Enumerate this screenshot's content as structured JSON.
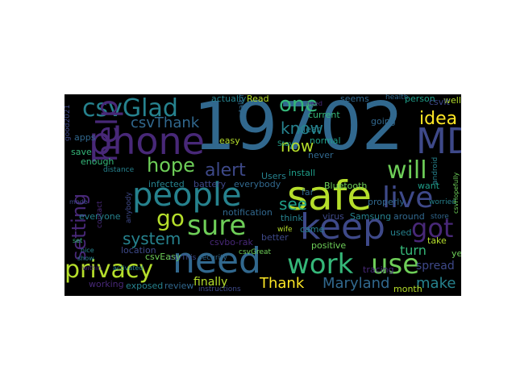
{
  "wordcloud": {
    "words": [
      {
        "text": "19702",
        "color": "#31688e"
      },
      {
        "text": "MD",
        "color": "#3e4989"
      },
      {
        "text": "phone",
        "color": "#482878"
      },
      {
        "text": "safe",
        "color": "#b5de2b"
      },
      {
        "text": "keep",
        "color": "#3e4989"
      },
      {
        "text": "people",
        "color": "#26828e"
      },
      {
        "text": "need",
        "color": "#31688e"
      },
      {
        "text": "work",
        "color": "#35b779"
      },
      {
        "text": "use",
        "color": "#6ece58"
      },
      {
        "text": "sure",
        "color": "#6ece58"
      },
      {
        "text": "live",
        "color": "#3e4989"
      },
      {
        "text": "csvGlad",
        "color": "#26828e"
      },
      {
        "text": "help",
        "color": "#482878"
      },
      {
        "text": "privacy",
        "color": "#b5de2b"
      },
      {
        "text": "one",
        "color": "#35b779"
      },
      {
        "text": "got",
        "color": "#482878"
      },
      {
        "text": "will",
        "color": "#6ece58"
      },
      {
        "text": "alert",
        "color": "#3e4989"
      },
      {
        "text": "hope",
        "color": "#6ece58"
      },
      {
        "text": "go",
        "color": "#b5de2b"
      },
      {
        "text": "csvThank",
        "color": "#31688e"
      },
      {
        "text": "know",
        "color": "#26828e"
      },
      {
        "text": "now",
        "color": "#b5de2b"
      },
      {
        "text": "idea",
        "color": "#fde725"
      },
      {
        "text": "see",
        "color": "#1f9e89"
      },
      {
        "text": "setting",
        "color": "#482878"
      },
      {
        "text": "system",
        "color": "#26828e"
      },
      {
        "text": "Thank",
        "color": "#fde725"
      },
      {
        "text": "Maryland",
        "color": "#31688e"
      },
      {
        "text": "make",
        "color": "#26828e"
      },
      {
        "text": "turn",
        "color": "#35b779"
      },
      {
        "text": "finally",
        "color": "#b5de2b"
      },
      {
        "text": "spread",
        "color": "#3e4989"
      },
      {
        "text": "Bluetooth",
        "color": "#6ece58"
      },
      {
        "text": "install",
        "color": "#1f9e89"
      },
      {
        "text": "notification",
        "color": "#31688e"
      },
      {
        "text": "virus",
        "color": "#3e4989"
      },
      {
        "text": "Samsung",
        "color": "#26828e"
      },
      {
        "text": "infected",
        "color": "#26828e"
      },
      {
        "text": "battery",
        "color": "#3e4989"
      },
      {
        "text": "everybody",
        "color": "#31688e"
      },
      {
        "text": "easy",
        "color": "#b5de2b"
      },
      {
        "text": "csvEasy",
        "color": "#6ece58"
      },
      {
        "text": "csvbo-rak",
        "color": "#482878"
      },
      {
        "text": "around",
        "color": "#31688e"
      },
      {
        "text": "positive",
        "color": "#6ece58"
      },
      {
        "text": "take",
        "color": "#b5de2b"
      },
      {
        "text": "want",
        "color": "#1f9e89"
      },
      {
        "text": "person",
        "color": "#1f9e89"
      },
      {
        "text": "apps",
        "color": "#31688e"
      },
      {
        "text": "enough",
        "color": "#35b779"
      },
      {
        "text": "save",
        "color": "#35b779"
      },
      {
        "text": "everyone",
        "color": "#26828e"
      },
      {
        "text": "location",
        "color": "#3e4989"
      },
      {
        "text": "exposed",
        "color": "#26828e"
      },
      {
        "text": "review",
        "color": "#31688e"
      },
      {
        "text": "month",
        "color": "#b5de2b"
      },
      {
        "text": "tracing",
        "color": "#482878"
      },
      {
        "text": "used",
        "color": "#26828e"
      },
      {
        "text": "yet",
        "color": "#6ece58"
      },
      {
        "text": "far",
        "color": "#31688e"
      },
      {
        "text": "think",
        "color": "#26828e"
      },
      {
        "text": "never",
        "color": "#31688e"
      },
      {
        "text": "normal",
        "color": "#1f9e89"
      },
      {
        "text": "current",
        "color": "#35b779"
      },
      {
        "text": "clear",
        "color": "#26828e"
      },
      {
        "text": "going",
        "color": "#31688e"
      },
      {
        "text": "well",
        "color": "#b5de2b"
      },
      {
        "text": "csvIt",
        "color": "#3e4989"
      },
      {
        "text": "seems",
        "color": "#31688e"
      },
      {
        "text": "Users",
        "color": "#26828e"
      },
      {
        "text": "actually",
        "color": "#26828e"
      },
      {
        "text": "Read",
        "color": "#b5de2b"
      },
      {
        "text": "working",
        "color": "#482878"
      },
      {
        "text": "better",
        "color": "#3e4989"
      },
      {
        "text": "came",
        "color": "#26828e"
      },
      {
        "text": "instructions",
        "color": "#3e4989"
      },
      {
        "text": "properly",
        "color": "#31688e"
      },
      {
        "text": "worried",
        "color": "#26828e"
      },
      {
        "text": "store",
        "color": "#31688e"
      },
      {
        "text": "good2021",
        "color": "#3e4989"
      },
      {
        "text": "anybody",
        "color": "#3e4989"
      },
      {
        "text": "wife",
        "color": "#b5de2b"
      },
      {
        "text": "distance",
        "color": "#26828e"
      },
      {
        "text": "csvGreat",
        "color": "#6ece58"
      },
      {
        "text": "security",
        "color": "#31688e"
      },
      {
        "text": "csvThis",
        "color": "#3e4989"
      },
      {
        "text": "health",
        "color": "#31688e"
      },
      {
        "text": "android",
        "color": "#26828e"
      },
      {
        "text": "contact",
        "color": "#482878"
      },
      {
        "text": "talking",
        "color": "#31688e"
      },
      {
        "text": "Stay",
        "color": "#1f9e89"
      },
      {
        "text": "csvHopefully",
        "color": "#6ece58"
      },
      {
        "text": "need",
        "color": "#482878"
      },
      {
        "text": "set",
        "color": "#35b779"
      },
      {
        "text": "nice",
        "color": "#26828e"
      },
      {
        "text": "show",
        "color": "#26828e"
      },
      {
        "text": "within",
        "color": "#482878"
      },
      {
        "text": "mode",
        "color": "#3e4989"
      },
      {
        "text": "activated",
        "color": "#26828e"
      }
    ]
  }
}
